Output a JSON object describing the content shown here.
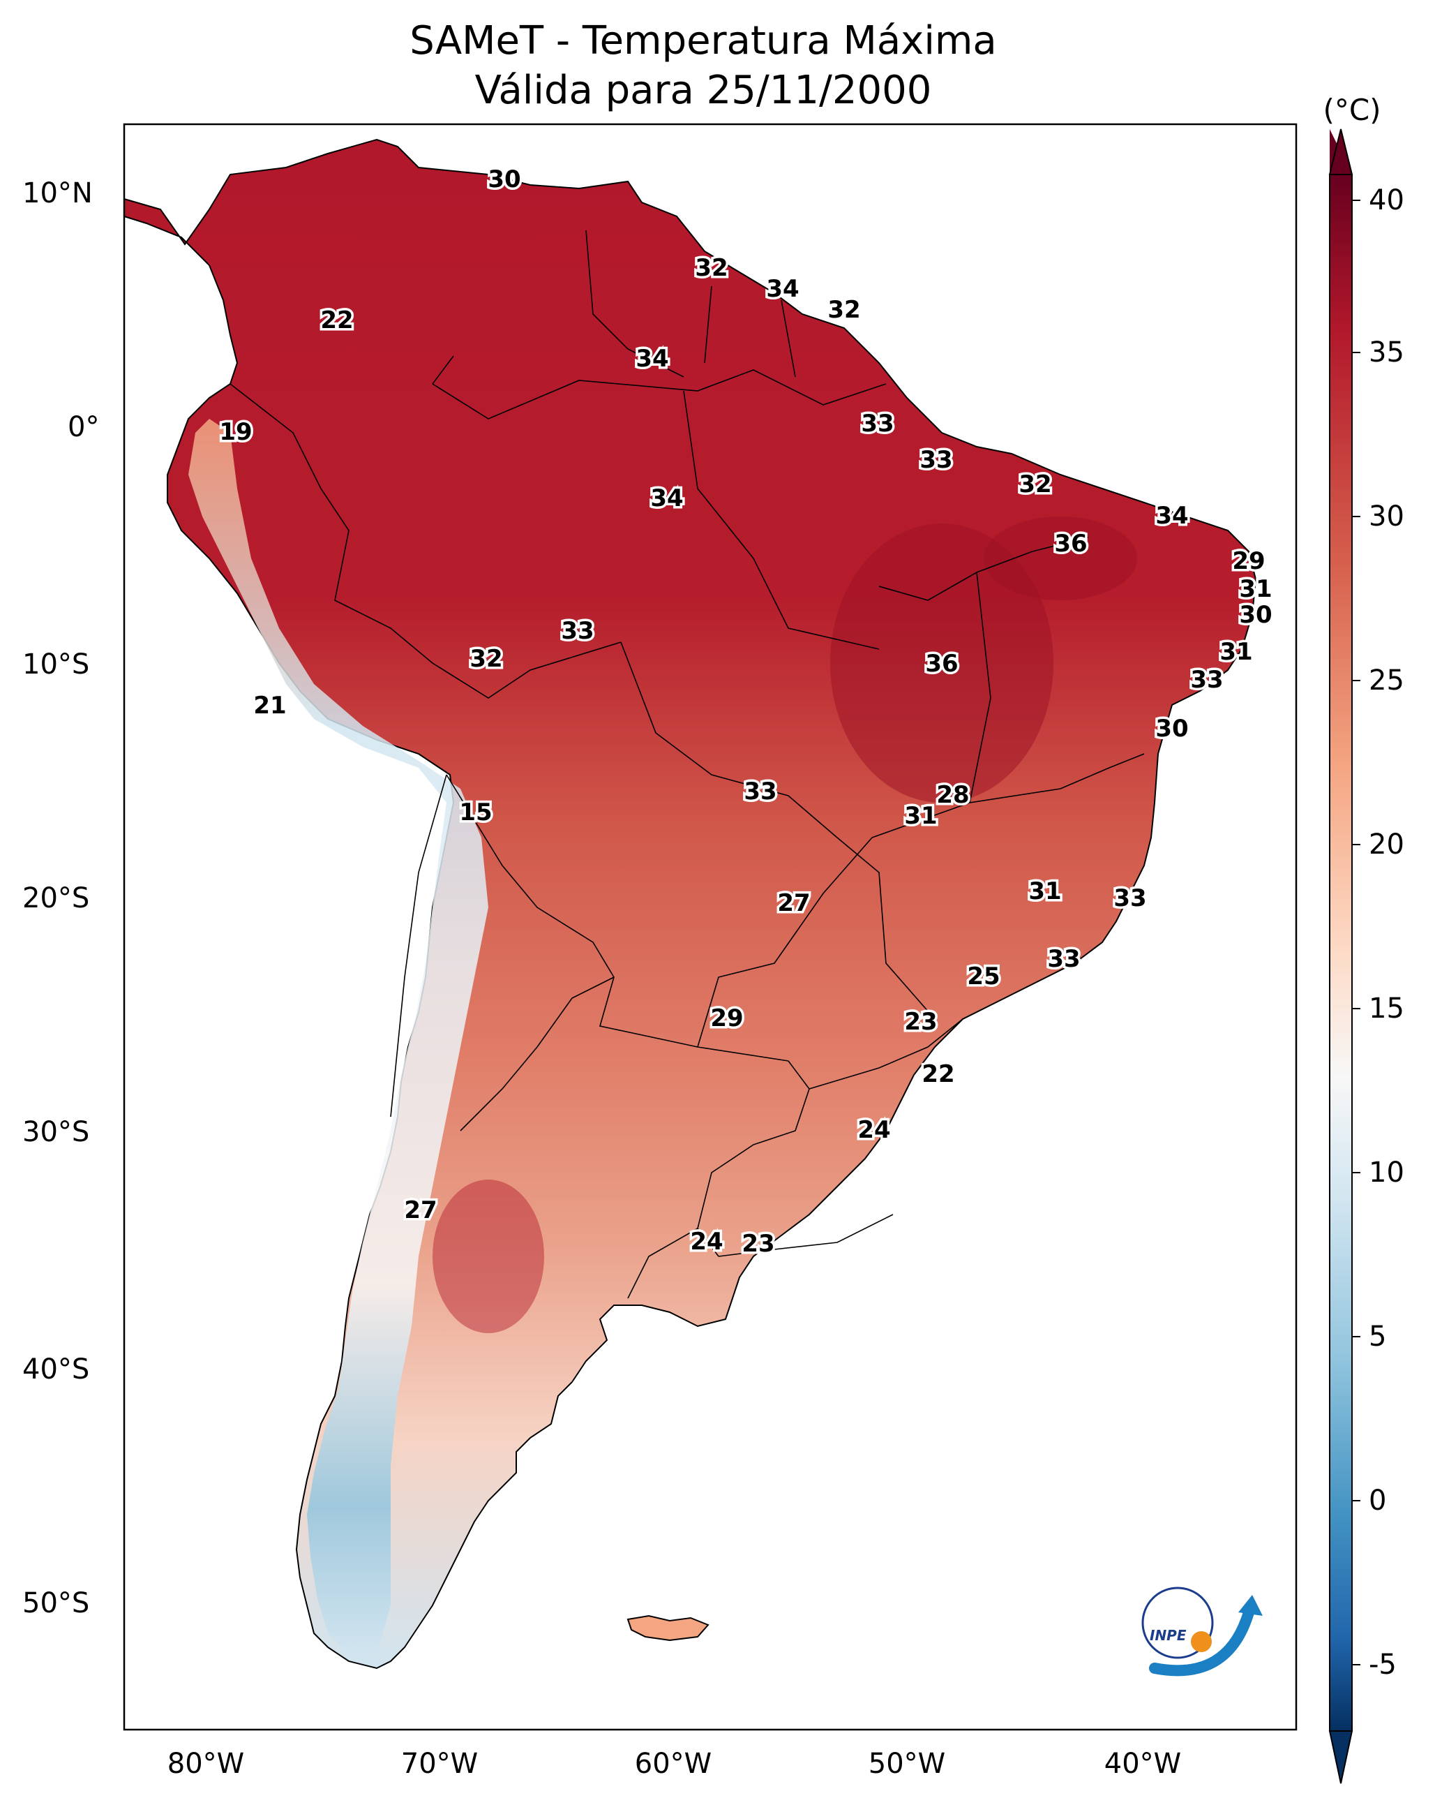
{
  "title": {
    "line1": "SAMeT - Temperatura Máxima",
    "line2": "Válida para 25/11/2000"
  },
  "lat_ticks": [
    "10°N",
    "0°",
    "10°S",
    "20°S",
    "30°S",
    "40°S",
    "50°S"
  ],
  "lon_ticks": [
    "80°W",
    "70°W",
    "60°W",
    "50°W",
    "40°W"
  ],
  "colorbar": {
    "unit": "(°C)",
    "ticks": [
      "40",
      "35",
      "30",
      "25",
      "20",
      "15",
      "10",
      "5",
      "0",
      "-5"
    ],
    "colors": [
      "#67001f",
      "#b2182b",
      "#d6604d",
      "#f4a582",
      "#fddbc7",
      "#f7f7f7",
      "#d1e5f0",
      "#92c5de",
      "#4393c3",
      "#2166ac",
      "#053061"
    ]
  },
  "contour_labels": [
    "30",
    "32",
    "34",
    "32",
    "22",
    "34",
    "19",
    "33",
    "33",
    "34",
    "32",
    "34",
    "36",
    "29",
    "31",
    "30",
    "33",
    "32",
    "31",
    "33",
    "36",
    "21",
    "30",
    "28",
    "15",
    "33",
    "31",
    "31",
    "27",
    "33",
    "33",
    "25",
    "29",
    "23",
    "22",
    "24",
    "27",
    "24",
    "23"
  ],
  "logo": {
    "text": "INPE"
  }
}
